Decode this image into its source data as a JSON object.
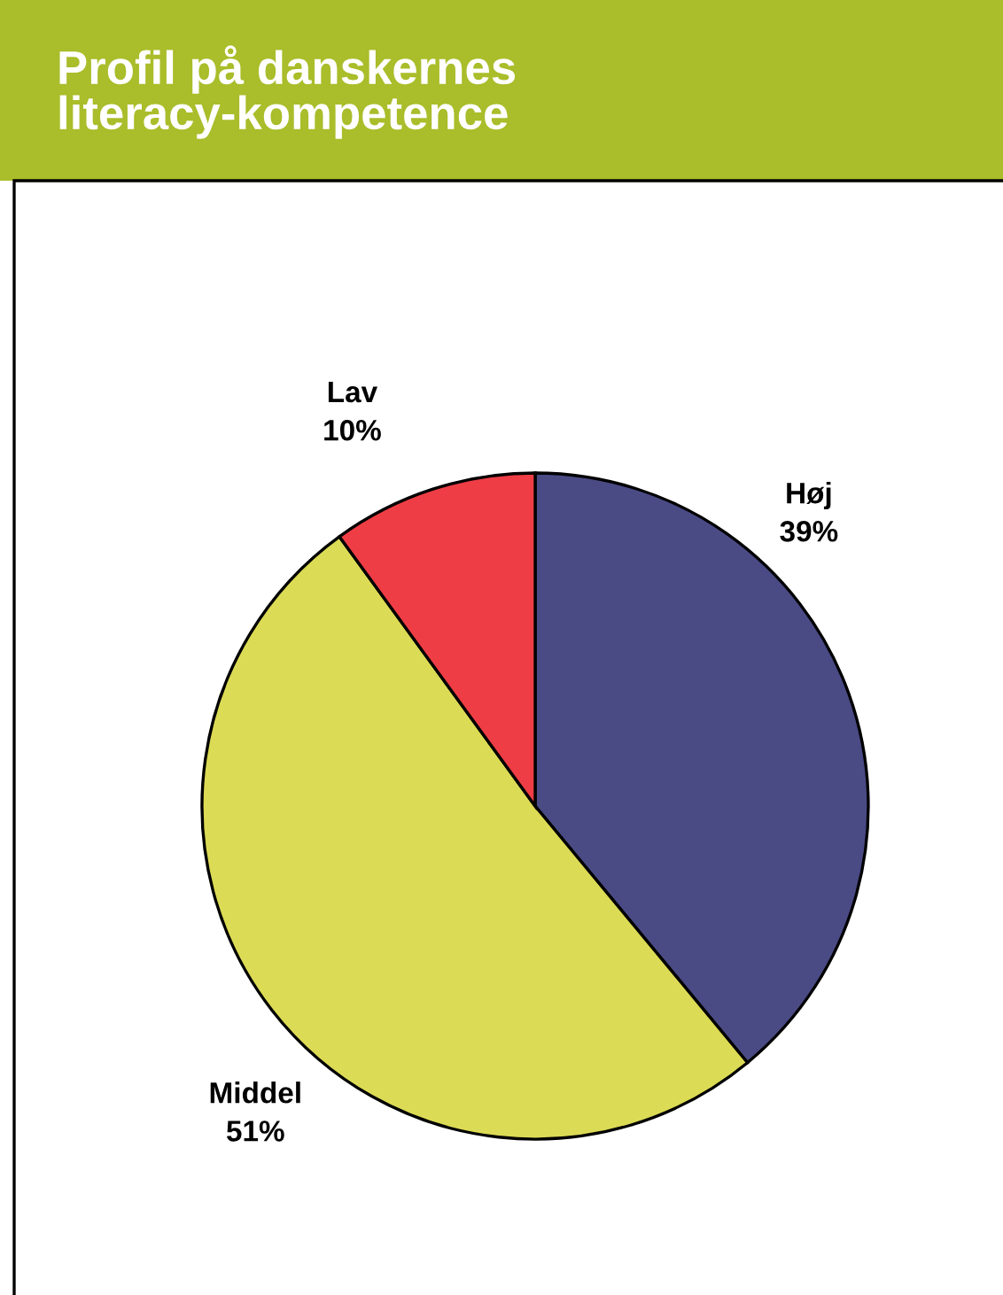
{
  "chart_data": {
    "type": "pie",
    "title": "Profil på danskernes\nliteracy-kompetence",
    "categories": [
      "Høj",
      "Middel",
      "Lav"
    ],
    "values": [
      39,
      51,
      10
    ],
    "value_labels": [
      "39%",
      "51%",
      "10%"
    ],
    "colors": [
      "#4a4a85",
      "#dcdb55",
      "#ef3d45"
    ]
  }
}
